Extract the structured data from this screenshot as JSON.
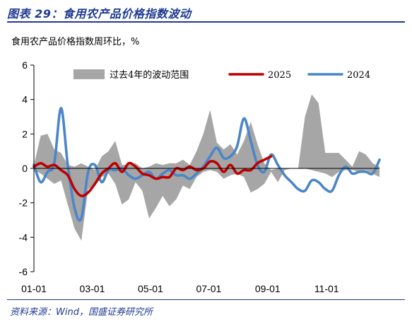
{
  "figure": {
    "title": "图表 29：食用农产品价格指数波动",
    "source": "资料来源：Wind，国盛证券研究所"
  },
  "chart_data": {
    "type": "line",
    "subtitle": "食用农产品价格指数周环比，%",
    "ylim": [
      -6,
      6
    ],
    "yticks": [
      -6,
      -4,
      -2,
      0,
      2,
      4,
      6
    ],
    "xlim": [
      1,
      52
    ],
    "xticks": [
      {
        "label": "01-01",
        "week": 1
      },
      {
        "label": "03-01",
        "week": 9.6
      },
      {
        "label": "05-01",
        "week": 18.2
      },
      {
        "label": "07-01",
        "week": 26.8
      },
      {
        "label": "09-01",
        "week": 35.5
      },
      {
        "label": "11-01",
        "week": 44.2
      }
    ],
    "grid": false,
    "legend_position": "top",
    "series": [
      {
        "name": "过去4年的波动范围",
        "kind": "band",
        "color": "#A6A6A6",
        "x": [
          1,
          2,
          3,
          4,
          5,
          6,
          7,
          8,
          9,
          10,
          11,
          12,
          13,
          14,
          15,
          16,
          17,
          18,
          19,
          20,
          21,
          22,
          23,
          24,
          25,
          26,
          27,
          28,
          29,
          30,
          31,
          32,
          33,
          34,
          35,
          36,
          37,
          38,
          39,
          40,
          41,
          42,
          43,
          44,
          45,
          46,
          47,
          48,
          49,
          50,
          51,
          52
        ],
        "upper": [
          0.2,
          1.9,
          2.0,
          1.1,
          0.9,
          0.2,
          0.1,
          0.3,
          0.1,
          -0.1,
          0.7,
          1.0,
          1.6,
          0.2,
          0.2,
          0.3,
          0.0,
          0.1,
          0.3,
          0.2,
          0.3,
          0.3,
          0.5,
          0.2,
          1.0,
          2.0,
          3.4,
          1.5,
          1.1,
          1.4,
          0.8,
          1.6,
          2.7,
          1.4,
          0.3,
          -0.1,
          0.0,
          0.0,
          0.0,
          0.0,
          3.0,
          4.3,
          3.8,
          0.9,
          0.9,
          0.9,
          0.5,
          0.1,
          1.0,
          0.8,
          0.3,
          0.1
        ],
        "lower": [
          -0.1,
          -0.3,
          -0.6,
          -0.9,
          -0.7,
          -2.1,
          -3.5,
          -4.2,
          -1.2,
          -1.0,
          -0.5,
          -0.3,
          -0.9,
          -2.1,
          -1.8,
          -0.8,
          -1.3,
          -2.9,
          -2.3,
          -1.6,
          -2.2,
          -1.8,
          -1.0,
          -1.2,
          -0.5,
          -0.2,
          -0.1,
          -0.2,
          -0.6,
          -0.4,
          -0.3,
          -0.5,
          -1.4,
          -1.2,
          -0.9,
          -0.2,
          -0.8,
          -0.1,
          0.0,
          0.0,
          0.0,
          -0.1,
          -0.2,
          -0.3,
          -0.5,
          -0.2,
          -0.1,
          -0.1,
          -0.2,
          -0.1,
          -0.3,
          -0.5
        ]
      },
      {
        "name": "2025",
        "kind": "line",
        "color": "#C00000",
        "x": [
          1,
          2,
          3,
          4,
          5,
          6,
          7,
          8,
          9,
          10,
          11,
          12,
          13,
          14,
          15,
          16,
          17,
          18,
          19,
          20,
          21,
          22,
          23,
          24,
          25,
          26,
          27,
          28,
          29,
          30,
          31,
          32,
          33,
          34,
          35,
          36
        ],
        "values": [
          0.1,
          0.3,
          0.1,
          0.2,
          -0.1,
          -0.4,
          -1.2,
          -1.6,
          -1.4,
          -0.9,
          -0.3,
          0.0,
          0.3,
          -0.2,
          0.3,
          0.1,
          -0.3,
          -0.4,
          -0.6,
          -0.5,
          -0.5,
          0.0,
          -0.1,
          0.1,
          -0.1,
          0.0,
          0.4,
          0.3,
          -0.2,
          0.2,
          -0.3,
          -0.1,
          -0.1,
          0.3,
          0.5,
          0.7
        ]
      },
      {
        "name": "2024",
        "kind": "line",
        "color": "#4A86C8",
        "x": [
          1,
          2,
          3,
          4,
          5,
          6,
          7,
          8,
          9,
          10,
          11,
          12,
          13,
          14,
          15,
          16,
          17,
          18,
          19,
          20,
          21,
          22,
          23,
          24,
          25,
          26,
          27,
          28,
          29,
          30,
          31,
          32,
          33,
          34,
          35,
          36,
          37,
          38,
          39,
          40,
          41,
          42,
          43,
          44,
          45,
          46,
          47,
          48,
          49,
          50,
          51,
          52
        ],
        "values": [
          0.2,
          -0.8,
          -0.2,
          0.3,
          3.5,
          0.2,
          -2.3,
          -2.9,
          -0.2,
          0.2,
          -0.8,
          -0.1,
          -0.1,
          0.0,
          -0.4,
          -0.6,
          -0.4,
          -0.2,
          -0.6,
          -0.3,
          -0.1,
          -0.4,
          -0.4,
          -0.6,
          -0.3,
          0.1,
          0.7,
          1.2,
          0.6,
          0.7,
          1.3,
          2.9,
          1.6,
          0.2,
          -0.2,
          0.8,
          0.2,
          -0.4,
          -0.8,
          -1.2,
          -1.3,
          -0.7,
          -0.8,
          -1.2,
          -1.3,
          -0.4,
          0.1,
          -0.3,
          -0.2,
          -0.2,
          -0.3,
          0.5
        ]
      }
    ]
  }
}
